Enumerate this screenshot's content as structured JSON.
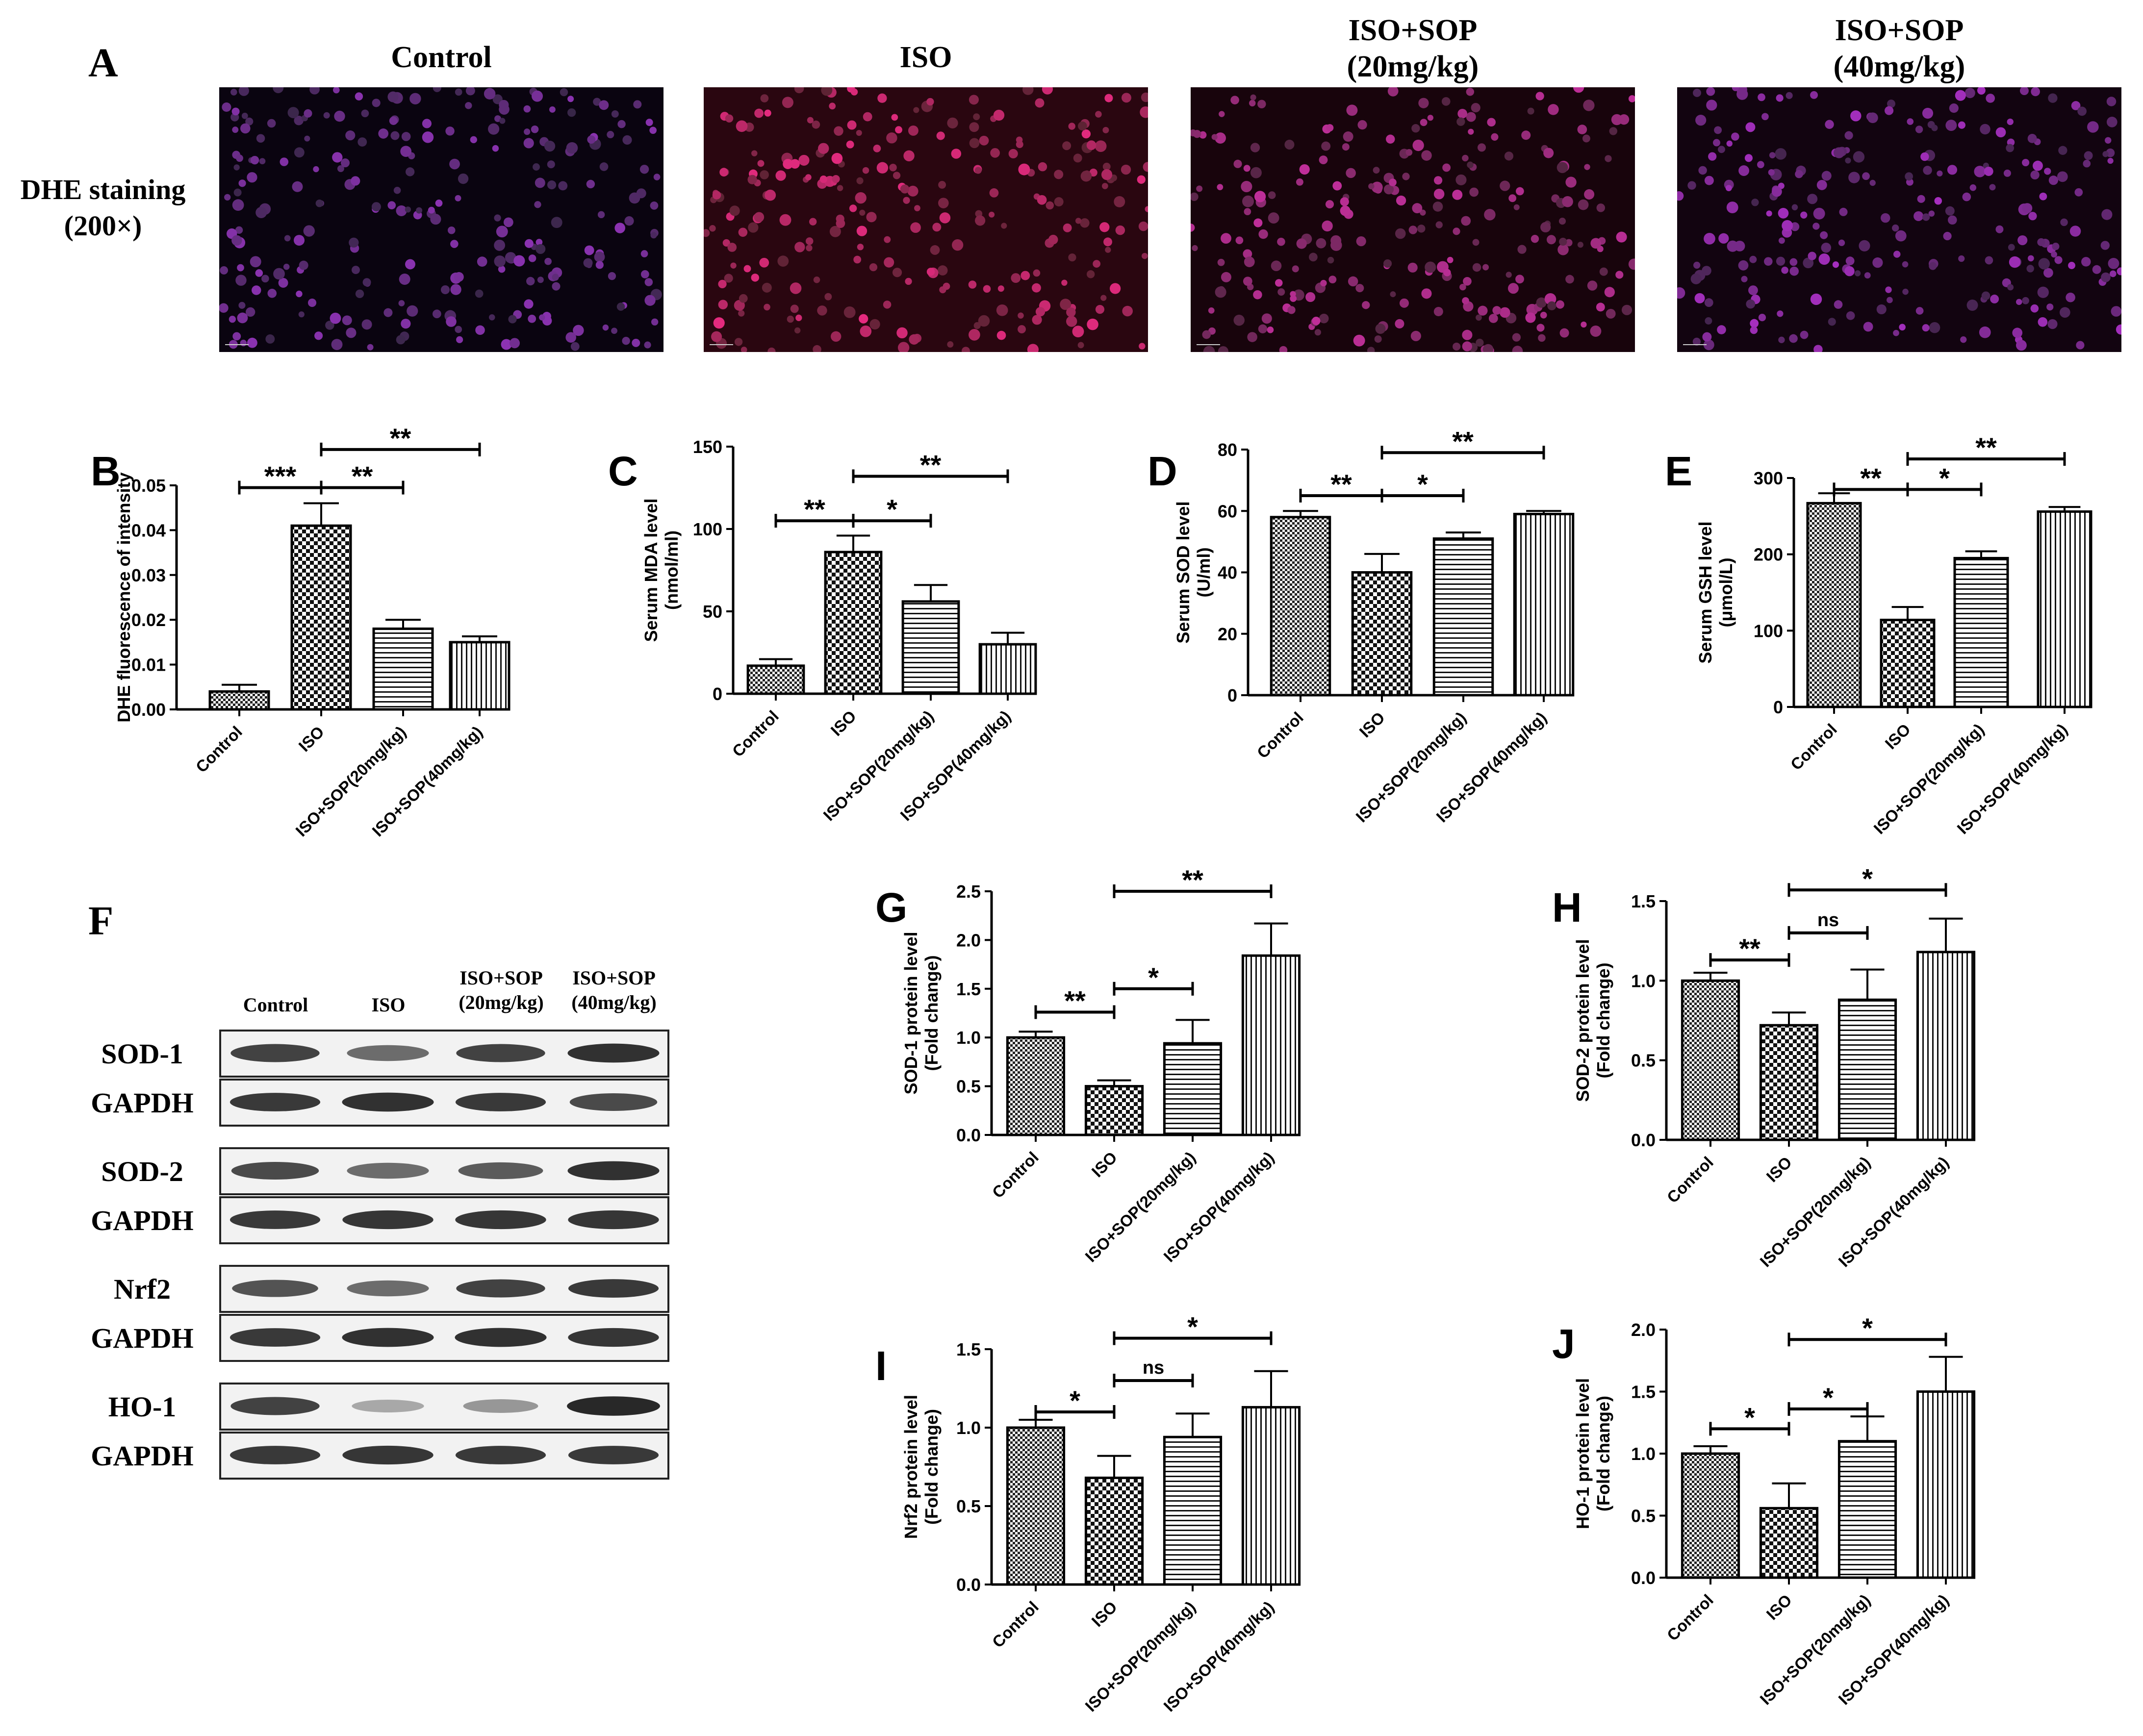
{
  "letters": {
    "A": "A",
    "B": "B",
    "C": "C",
    "D": "D",
    "E": "E",
    "F": "F",
    "G": "G",
    "H": "H",
    "I": "I",
    "J": "J"
  },
  "panel_a": {
    "row_label_1": "DHE staining",
    "row_label_2": "(200×)",
    "titles": [
      {
        "line1": "Control",
        "line2": ""
      },
      {
        "line1": "ISO",
        "line2": ""
      },
      {
        "line1": "ISO+SOP",
        "line2": "(20mg/kg)"
      },
      {
        "line1": "ISO+SOP",
        "line2": "(40mg/kg)"
      }
    ]
  },
  "panel_f": {
    "headers": [
      {
        "line1": "Control",
        "line2": ""
      },
      {
        "line1": "ISO",
        "line2": ""
      },
      {
        "line1": "ISO+SOP",
        "line2": "(20mg/kg)"
      },
      {
        "line1": "ISO+SOP",
        "line2": "(40mg/kg)"
      }
    ],
    "blots": [
      {
        "label": "SOD-1",
        "intensity": [
          0.85,
          0.6,
          0.85,
          0.95
        ]
      },
      {
        "label": "GAPDH",
        "intensity": [
          0.9,
          0.95,
          0.9,
          0.8
        ]
      },
      {
        "label": "SOD-2",
        "intensity": [
          0.8,
          0.6,
          0.7,
          0.95
        ]
      },
      {
        "label": "GAPDH",
        "intensity": [
          0.9,
          0.92,
          0.92,
          0.92
        ]
      },
      {
        "label": "Nrf2",
        "intensity": [
          0.75,
          0.6,
          0.85,
          0.9
        ]
      },
      {
        "label": "GAPDH",
        "intensity": [
          0.9,
          0.95,
          0.95,
          0.92
        ]
      },
      {
        "label": "HO-1",
        "intensity": [
          0.85,
          0.25,
          0.35,
          1.0
        ]
      },
      {
        "label": "GAPDH",
        "intensity": [
          0.9,
          0.92,
          0.9,
          0.9
        ]
      }
    ]
  },
  "chart_data": [
    {
      "id": "B",
      "type": "bar",
      "categories": [
        "Control",
        "ISO",
        "ISO+SOP(20mg/kg)",
        "ISO+SOP(40mg/kg)"
      ],
      "values": [
        0.004,
        0.041,
        0.018,
        0.015
      ],
      "errors": [
        0.0015,
        0.005,
        0.002,
        0.0013
      ],
      "ylabel": "DHE fluorescence of intensity",
      "ylim": [
        0,
        0.05
      ],
      "yticks": [
        "0.00",
        "0.01",
        "0.02",
        "0.03",
        "0.04",
        "0.05"
      ],
      "comparisons": [
        {
          "from": 0,
          "to": 1,
          "label": "***",
          "y": 0.0495
        },
        {
          "from": 1,
          "to": 2,
          "label": "**",
          "y": 0.0495
        },
        {
          "from": 1,
          "to": 3,
          "label": "**",
          "y": 0.058
        }
      ]
    },
    {
      "id": "C",
      "type": "bar",
      "categories": [
        "Control",
        "ISO",
        "ISO+SOP(20mg/kg)",
        "ISO+SOP(40mg/kg)"
      ],
      "values": [
        17,
        86,
        56,
        30
      ],
      "errors": [
        4,
        10,
        10,
        7
      ],
      "ylabel": "Serum MDA level",
      "ylabel2": "(nmol/ml)",
      "ylim": [
        0,
        150
      ],
      "yticks": [
        "0",
        "50",
        "100",
        "150"
      ],
      "comparisons": [
        {
          "from": 0,
          "to": 1,
          "label": "**",
          "y": 105
        },
        {
          "from": 1,
          "to": 2,
          "label": "*",
          "y": 105
        },
        {
          "from": 1,
          "to": 3,
          "label": "**",
          "y": 132
        }
      ]
    },
    {
      "id": "D",
      "type": "bar",
      "categories": [
        "Control",
        "ISO",
        "ISO+SOP(20mg/kg)",
        "ISO+SOP(40mg/kg)"
      ],
      "values": [
        58,
        40,
        51,
        59
      ],
      "errors": [
        2,
        6,
        2,
        1
      ],
      "ylabel": "Serum SOD level",
      "ylabel2": "(U/ml)",
      "ylim": [
        0,
        80
      ],
      "yticks": [
        "0",
        "20",
        "40",
        "60",
        "80"
      ],
      "comparisons": [
        {
          "from": 0,
          "to": 1,
          "label": "**",
          "y": 65
        },
        {
          "from": 1,
          "to": 2,
          "label": "*",
          "y": 65
        },
        {
          "from": 1,
          "to": 3,
          "label": "**",
          "y": 79
        }
      ]
    },
    {
      "id": "E",
      "type": "bar",
      "categories": [
        "Control",
        "ISO",
        "ISO+SOP(20mg/kg)",
        "ISO+SOP(40mg/kg)"
      ],
      "values": [
        267,
        114,
        195,
        256
      ],
      "errors": [
        13,
        17,
        9,
        6
      ],
      "ylabel": "Serum GSH level",
      "ylabel2": "(μmol/L)",
      "ylim": [
        0,
        300
      ],
      "yticks": [
        "0",
        "100",
        "200",
        "300"
      ],
      "comparisons": [
        {
          "from": 0,
          "to": 1,
          "label": "**",
          "y": 285
        },
        {
          "from": 1,
          "to": 2,
          "label": "*",
          "y": 285
        },
        {
          "from": 1,
          "to": 3,
          "label": "**",
          "y": 325
        }
      ]
    },
    {
      "id": "G",
      "type": "bar",
      "categories": [
        "Control",
        "ISO",
        "ISO+SOP(20mg/kg)",
        "ISO+SOP(40mg/kg)"
      ],
      "values": [
        1.0,
        0.5,
        0.94,
        1.84
      ],
      "errors": [
        0.06,
        0.06,
        0.24,
        0.33
      ],
      "ylabel": "SOD-1 protein level",
      "ylabel2": "(Fold change)",
      "ylim": [
        0,
        2.5
      ],
      "yticks": [
        "0.0",
        "0.5",
        "1.0",
        "1.5",
        "2.0",
        "2.5"
      ],
      "comparisons": [
        {
          "from": 0,
          "to": 1,
          "label": "**",
          "y": 1.26
        },
        {
          "from": 1,
          "to": 2,
          "label": "*",
          "y": 1.5
        },
        {
          "from": 1,
          "to": 3,
          "label": "**",
          "y": 2.5
        }
      ]
    },
    {
      "id": "H",
      "type": "bar",
      "categories": [
        "Control",
        "ISO",
        "ISO+SOP(20mg/kg)",
        "ISO+SOP(40mg/kg)"
      ],
      "values": [
        1.0,
        0.72,
        0.88,
        1.18
      ],
      "errors": [
        0.05,
        0.08,
        0.19,
        0.21
      ],
      "ylabel": "SOD-2 protein level",
      "ylabel2": "(Fold change)",
      "ylim": [
        0,
        1.5
      ],
      "yticks": [
        "0.0",
        "0.5",
        "1.0",
        "1.5"
      ],
      "comparisons": [
        {
          "from": 0,
          "to": 1,
          "label": "**",
          "y": 1.13
        },
        {
          "from": 1,
          "to": 2,
          "label": "ns",
          "y": 1.3
        },
        {
          "from": 1,
          "to": 3,
          "label": "*",
          "y": 1.57
        }
      ]
    },
    {
      "id": "I",
      "type": "bar",
      "categories": [
        "Control",
        "ISO",
        "ISO+SOP(20mg/kg)",
        "ISO+SOP(40mg/kg)"
      ],
      "values": [
        1.0,
        0.68,
        0.94,
        1.13
      ],
      "errors": [
        0.05,
        0.14,
        0.15,
        0.23
      ],
      "ylabel": "Nrf2 protein level",
      "ylabel2": "(Fold change)",
      "ylim": [
        0,
        1.5
      ],
      "yticks": [
        "0.0",
        "0.5",
        "1.0",
        "1.5"
      ],
      "comparisons": [
        {
          "from": 0,
          "to": 1,
          "label": "*",
          "y": 1.1
        },
        {
          "from": 1,
          "to": 2,
          "label": "ns",
          "y": 1.3
        },
        {
          "from": 1,
          "to": 3,
          "label": "*",
          "y": 1.57
        }
      ]
    },
    {
      "id": "J",
      "type": "bar",
      "categories": [
        "Control",
        "ISO",
        "ISO+SOP(20mg/kg)",
        "ISO+SOP(40mg/kg)"
      ],
      "values": [
        1.0,
        0.56,
        1.1,
        1.5
      ],
      "errors": [
        0.06,
        0.2,
        0.2,
        0.28
      ],
      "ylabel": "HO-1 protein level",
      "ylabel2": "(Fold change)",
      "ylim": [
        0,
        2.0
      ],
      "yticks": [
        "0.0",
        "0.5",
        "1.0",
        "1.5",
        "2.0"
      ],
      "comparisons": [
        {
          "from": 0,
          "to": 1,
          "label": "*",
          "y": 1.2
        },
        {
          "from": 1,
          "to": 2,
          "label": "*",
          "y": 1.36
        },
        {
          "from": 1,
          "to": 3,
          "label": "*",
          "y": 1.92
        }
      ]
    }
  ]
}
